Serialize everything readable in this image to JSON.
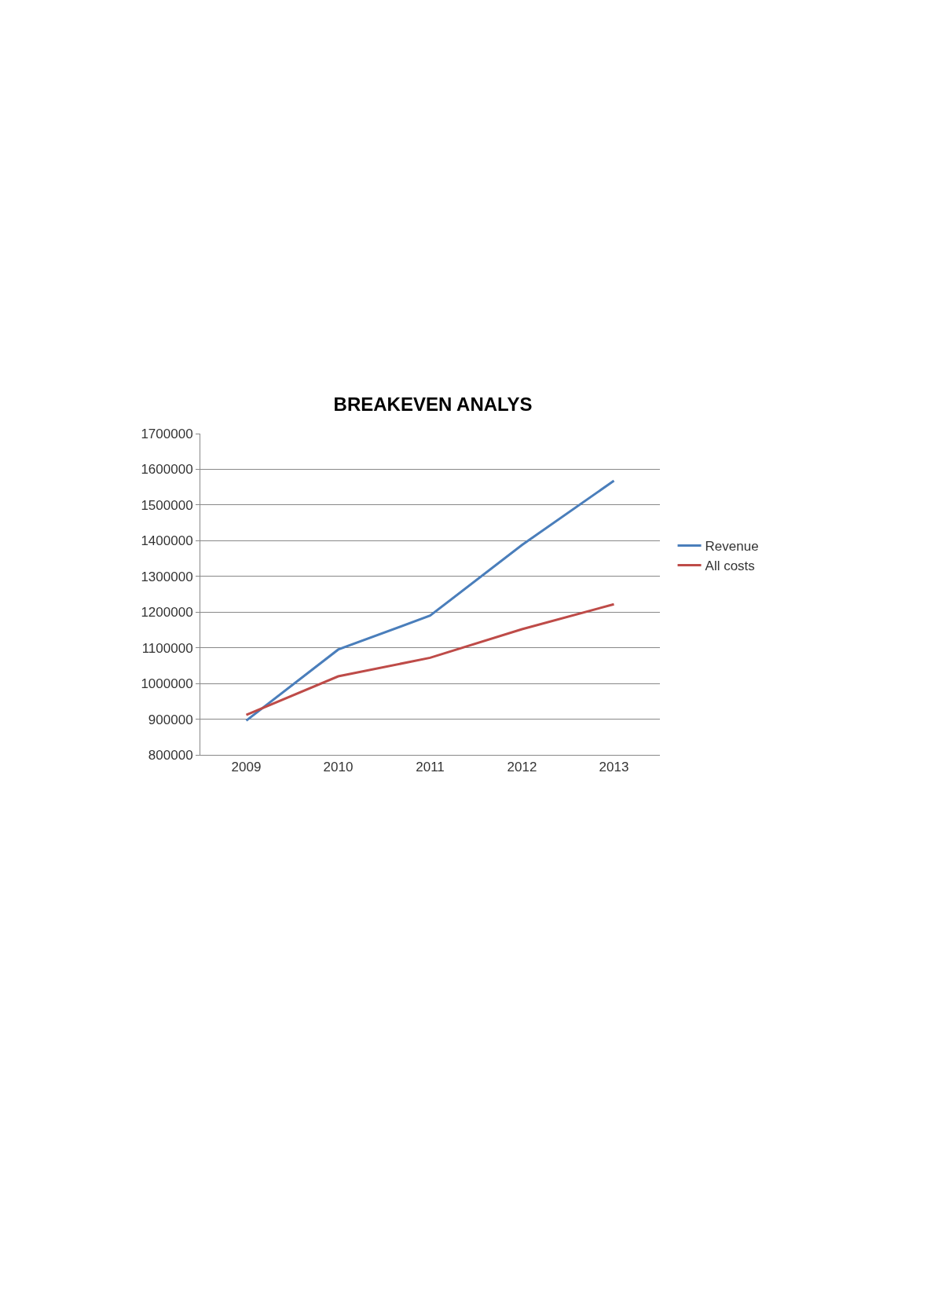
{
  "chart_data": {
    "type": "line",
    "title": "BREAKEVEN ANALYS",
    "categories": [
      "2009",
      "2010",
      "2011",
      "2012",
      "2013"
    ],
    "series": [
      {
        "name": "Revenue",
        "color": "#4a7ebb",
        "values": [
          896000,
          1095000,
          1190000,
          1388000,
          1568000
        ]
      },
      {
        "name": "All costs",
        "color": "#be4b48",
        "values": [
          912000,
          1020000,
          1072000,
          1152000,
          1222000
        ]
      }
    ],
    "ylim": [
      800000,
      1700000
    ],
    "yticks": [
      800000,
      900000,
      1000000,
      1100000,
      1200000,
      1300000,
      1400000,
      1500000,
      1600000,
      1700000
    ],
    "grid": "y",
    "legend": "right",
    "marker": "none",
    "line_style": "solid"
  }
}
